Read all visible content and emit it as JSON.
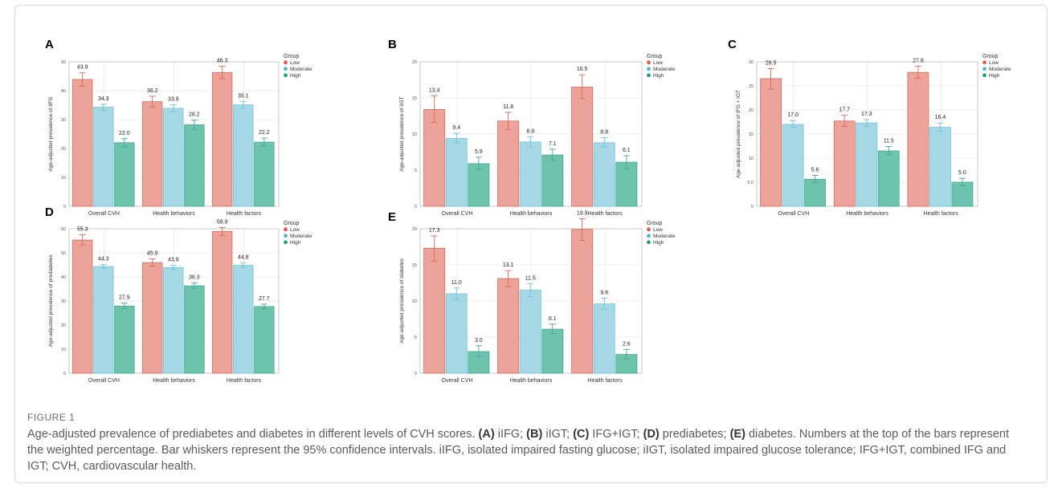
{
  "figure": {
    "label": "FIGURE 1",
    "caption_parts": [
      {
        "t": "Age-adjusted prevalence of prediabetes and diabetes in different levels of CVH scores. "
      },
      {
        "t": "(A)",
        "b": true
      },
      {
        "t": " iIFG; "
      },
      {
        "t": "(B)",
        "b": true
      },
      {
        "t": " iIGT; "
      },
      {
        "t": "(C)",
        "b": true
      },
      {
        "t": " IFG+IGT; "
      },
      {
        "t": "(D)",
        "b": true
      },
      {
        "t": " prediabetes; "
      },
      {
        "t": "(E)",
        "b": true
      },
      {
        "t": " diabetes. Numbers at the top of the bars represent the weighted percentage. Bar whiskers represent the 95% confidence intervals. iIFG, isolated impaired fasting glucose; iIGT, isolated impaired glucose tolerance; IFG+IGT, combined IFG and IGT; CVH, cardiovascular health."
      }
    ]
  },
  "legend": {
    "title": "Group",
    "items": [
      {
        "name": "Low",
        "color": "#e05a4c"
      },
      {
        "name": "Moderate",
        "color": "#4ab7d4"
      },
      {
        "name": "High",
        "color": "#1b9e84"
      }
    ]
  },
  "colors": {
    "fills": [
      "#eca49a",
      "#a6d8e6",
      "#6ec3ae"
    ],
    "strokes": [
      "#d9685b",
      "#6ec4dc",
      "#3faa8f"
    ]
  },
  "chart_data": [
    {
      "panel": "A",
      "type": "bar",
      "ylabel": "Age-adjusted prevalence of iIFG",
      "categories": [
        "Overall CVH",
        "Health behaviors",
        "Health factors"
      ],
      "ylim": [
        0,
        50
      ],
      "yticks": [
        "0",
        "10",
        "20",
        "30",
        "40",
        "50"
      ],
      "series": [
        {
          "name": "Low",
          "values": [
            43.9,
            36.2,
            46.3
          ],
          "ci_low": [
            41.6,
            34.4,
            44.2
          ],
          "ci_high": [
            46.2,
            38.1,
            48.5
          ]
        },
        {
          "name": "Moderate",
          "values": [
            34.3,
            33.9,
            35.1
          ],
          "ci_low": [
            33.3,
            32.7,
            33.9
          ],
          "ci_high": [
            35.3,
            35.1,
            36.3
          ]
        },
        {
          "name": "High",
          "values": [
            22.0,
            28.2,
            22.2
          ],
          "ci_low": [
            20.6,
            26.6,
            20.9
          ],
          "ci_high": [
            23.4,
            29.8,
            23.6
          ]
        }
      ],
      "labels": [
        "43.9",
        "36.2",
        "46.3",
        "34.3",
        "33.9",
        "35.1",
        "22.0",
        "28.2",
        "22.2"
      ]
    },
    {
      "panel": "B",
      "type": "bar",
      "ylabel": "Age-adjusted prevalence of iIGT",
      "categories": [
        "Overall CVH",
        "Health behaviors",
        "Health factors"
      ],
      "ylim": [
        0,
        20
      ],
      "yticks": [
        "0",
        "5",
        "10",
        "15",
        "20"
      ],
      "series": [
        {
          "name": "Low",
          "values": [
            13.4,
            11.8,
            16.5
          ],
          "ci_low": [
            11.6,
            10.6,
            14.9
          ],
          "ci_high": [
            15.3,
            13.0,
            18.2
          ]
        },
        {
          "name": "Moderate",
          "values": [
            9.4,
            8.9,
            8.8
          ],
          "ci_low": [
            8.8,
            8.2,
            8.2
          ],
          "ci_high": [
            10.1,
            9.6,
            9.5
          ]
        },
        {
          "name": "High",
          "values": [
            5.9,
            7.1,
            6.1
          ],
          "ci_low": [
            5.1,
            6.4,
            5.2
          ],
          "ci_high": [
            6.8,
            7.9,
            7.0
          ]
        }
      ],
      "labels": [
        "13.4",
        "11.8",
        "16.5",
        "9.4",
        "8.9",
        "8.8",
        "5.9",
        "7.1",
        "6.1"
      ]
    },
    {
      "panel": "C",
      "type": "bar",
      "ylabel": "Age-adjusted prevalence of IFG + IGT",
      "categories": [
        "Overall CVH",
        "Health behaviors",
        "Health factors"
      ],
      "ylim": [
        0,
        30
      ],
      "yticks": [
        "0",
        "5.0",
        "10",
        "15",
        "20",
        "25",
        "30"
      ],
      "series": [
        {
          "name": "Low",
          "values": [
            26.5,
            17.7,
            27.8
          ],
          "ci_low": [
            24.3,
            16.6,
            26.6
          ],
          "ci_high": [
            28.6,
            18.9,
            29.1
          ]
        },
        {
          "name": "Moderate",
          "values": [
            17.0,
            17.3,
            16.4
          ],
          "ci_low": [
            16.4,
            16.6,
            15.6
          ],
          "ci_high": [
            17.8,
            18.0,
            17.3
          ]
        },
        {
          "name": "High",
          "values": [
            5.6,
            11.5,
            5.0
          ],
          "ci_low": [
            5.0,
            10.7,
            4.3
          ],
          "ci_high": [
            6.4,
            12.4,
            5.8
          ]
        }
      ],
      "labels": [
        "26.5",
        "17.7",
        "27.8",
        "17.0",
        "17.3",
        "16.4",
        "5.6",
        "11.5",
        "5.0"
      ]
    },
    {
      "panel": "D",
      "type": "bar",
      "ylabel": "Age-adjusted prevalence of prediabetes",
      "categories": [
        "Overall CVH",
        "Health behaviors",
        "Health factors"
      ],
      "ylim": [
        0,
        60
      ],
      "yticks": [
        "0",
        "10",
        "20",
        "30",
        "40",
        "50",
        "60"
      ],
      "series": [
        {
          "name": "Low",
          "values": [
            55.3,
            45.9,
            58.9
          ],
          "ci_low": [
            53.2,
            44.5,
            57.1
          ],
          "ci_high": [
            57.5,
            47.5,
            60.5
          ]
        },
        {
          "name": "Moderate",
          "values": [
            44.3,
            43.9,
            44.8
          ],
          "ci_low": [
            43.6,
            43.0,
            44.0
          ],
          "ci_high": [
            45.1,
            44.8,
            45.8
          ]
        },
        {
          "name": "High",
          "values": [
            27.9,
            36.3,
            27.7
          ],
          "ci_low": [
            26.8,
            35.3,
            26.8
          ],
          "ci_high": [
            29.1,
            37.5,
            28.7
          ]
        }
      ],
      "labels": [
        "55.3",
        "45.9",
        "58.9",
        "44.3",
        "43.9",
        "44.8",
        "27.9",
        "36.3",
        "27.7"
      ]
    },
    {
      "panel": "E",
      "type": "bar",
      "ylabel": "Age-adjusted prevalence of diabetes",
      "categories": [
        "Overall CVH",
        "Health behaviors",
        "Health factors"
      ],
      "ylim": [
        0,
        20
      ],
      "yticks": [
        "0",
        "5",
        "10",
        "15",
        "20"
      ],
      "series": [
        {
          "name": "Low",
          "values": [
            17.3,
            13.1,
            19.9
          ],
          "ci_low": [
            15.5,
            12.0,
            18.4
          ],
          "ci_high": [
            19.0,
            14.2,
            21.4
          ]
        },
        {
          "name": "Moderate",
          "values": [
            11.0,
            11.5,
            9.6
          ],
          "ci_low": [
            10.2,
            10.6,
            8.9
          ],
          "ci_high": [
            11.8,
            12.4,
            10.4
          ]
        },
        {
          "name": "High",
          "values": [
            3.0,
            6.1,
            2.6
          ],
          "ci_low": [
            2.3,
            5.5,
            2.0
          ],
          "ci_high": [
            3.8,
            6.8,
            3.3
          ]
        }
      ],
      "labels": [
        "17.3",
        "13.1",
        "19.9",
        "11.0",
        "11.5",
        "9.6",
        "3.0",
        "6.1",
        "2.6"
      ]
    }
  ]
}
